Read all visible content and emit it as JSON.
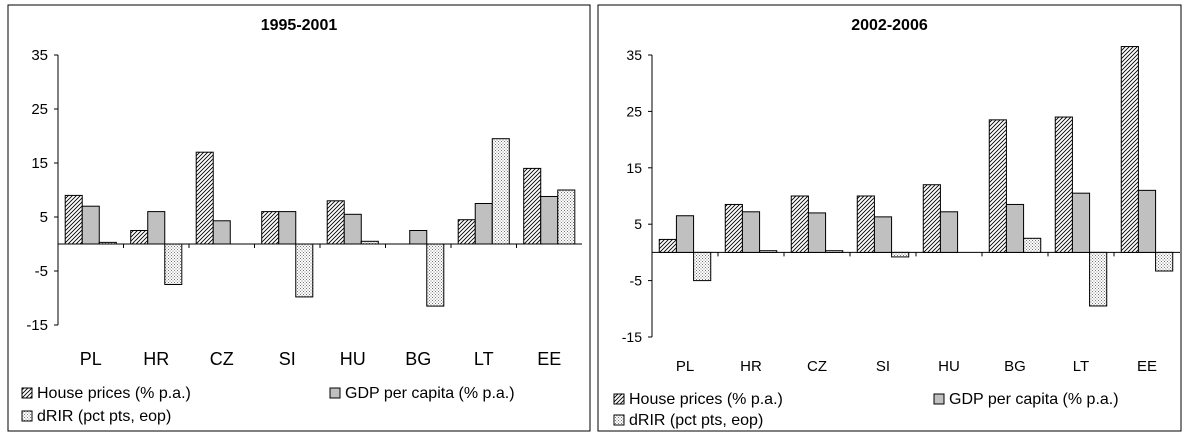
{
  "chart_data": [
    {
      "type": "bar",
      "title": "1995-2001",
      "categories": [
        "PL",
        "HR",
        "CZ",
        "SI",
        "HU",
        "BG",
        "LT",
        "EE"
      ],
      "ylim": [
        -15,
        35
      ],
      "yticks": [
        "35",
        "25",
        "15",
        "5",
        "-5",
        "-15"
      ],
      "ytick_values": [
        35,
        25,
        15,
        5,
        -5,
        -15
      ],
      "grid": false,
      "legend_position": "bottom",
      "series": [
        {
          "name": "House prices (% p.a.)",
          "pattern": "hatch",
          "values": [
            9.0,
            2.5,
            17.0,
            6.0,
            8.0,
            0,
            4.5,
            14.0
          ]
        },
        {
          "name": "GDP per capita (% p.a.)",
          "pattern": "gray",
          "values": [
            7.0,
            6.0,
            4.3,
            6.0,
            5.5,
            2.5,
            7.5,
            8.8
          ]
        },
        {
          "name": "dRIR (pct pts, eop)",
          "pattern": "dots",
          "values": [
            0.3,
            -7.5,
            0,
            -9.8,
            0.5,
            -11.5,
            19.5,
            10.0
          ]
        }
      ]
    },
    {
      "type": "bar",
      "title": "2002-2006",
      "categories": [
        "PL",
        "HR",
        "CZ",
        "SI",
        "HU",
        "BG",
        "LT",
        "EE"
      ],
      "ylim": [
        -15,
        35
      ],
      "yticks": [
        "35",
        "25",
        "15",
        "5",
        "-5",
        "-15"
      ],
      "ytick_values": [
        35,
        25,
        15,
        5,
        -5,
        -15
      ],
      "grid": false,
      "legend_position": "bottom",
      "series": [
        {
          "name": "House prices (% p.a.)",
          "pattern": "hatch",
          "values": [
            2.3,
            8.5,
            10.0,
            10.0,
            12.0,
            23.5,
            24.0,
            36.5
          ]
        },
        {
          "name": "GDP per capita (% p.a.)",
          "pattern": "gray",
          "values": [
            6.5,
            7.2,
            7.0,
            6.3,
            7.2,
            8.5,
            10.5,
            11.0
          ]
        },
        {
          "name": "dRIR (pct pts, eop)",
          "pattern": "dots",
          "values": [
            -5.0,
            0.3,
            0.3,
            -0.8,
            0,
            2.5,
            -9.5,
            -3.3
          ]
        }
      ]
    }
  ],
  "colors": {
    "frame": "#000000",
    "gray_fill": "#c0c0c0",
    "background": "#ffffff"
  }
}
